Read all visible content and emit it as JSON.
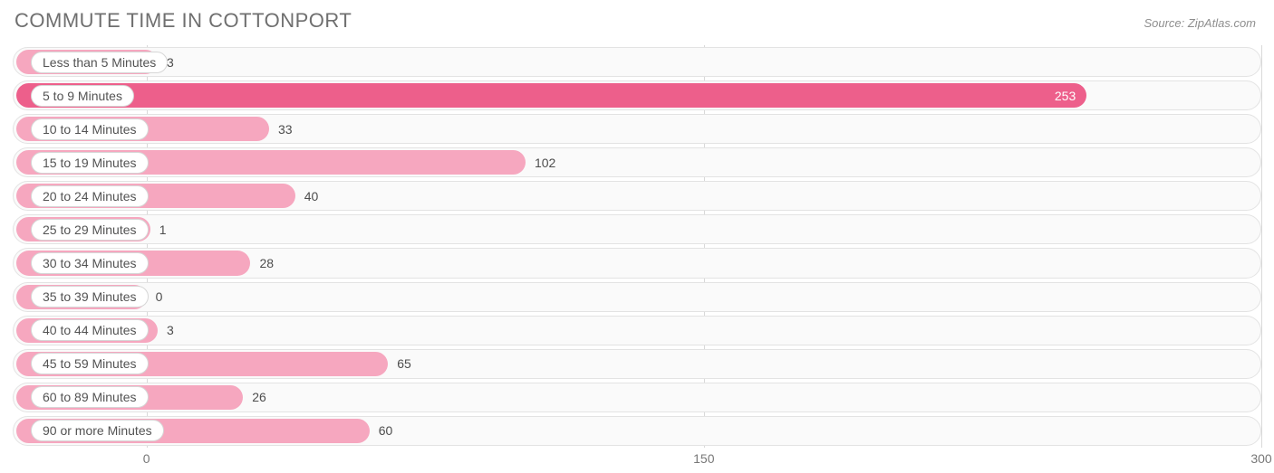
{
  "title": "COMMUTE TIME IN COTTONPORT",
  "source": "Source: ZipAtlas.com",
  "chart": {
    "type": "bar-horizontal",
    "origin_pct": 15.5,
    "scale_min": -36,
    "scale_max": 300,
    "track_border_color": "#e3e3e3",
    "track_bg": "#fafafa",
    "grid_color": "#d9d9d9",
    "background_color": "#ffffff",
    "title_color": "#6f6f6f",
    "source_color": "#8e8e8e",
    "label_color": "#535353",
    "value_color": "#4d4d4d",
    "value_color_inside": "#ffffff",
    "bar_color_full": "#ed5f8b",
    "bar_color_light": "#f6a7bf",
    "bars": [
      {
        "label": "Less than 5 Minutes",
        "value": 3,
        "color": "#f6a7bf",
        "value_inside": false
      },
      {
        "label": "5 to 9 Minutes",
        "value": 253,
        "color": "#ed5f8b",
        "value_inside": true
      },
      {
        "label": "10 to 14 Minutes",
        "value": 33,
        "color": "#f6a7bf",
        "value_inside": false
      },
      {
        "label": "15 to 19 Minutes",
        "value": 102,
        "color": "#f6a7bf",
        "value_inside": false
      },
      {
        "label": "20 to 24 Minutes",
        "value": 40,
        "color": "#f6a7bf",
        "value_inside": false
      },
      {
        "label": "25 to 29 Minutes",
        "value": 1,
        "color": "#f6a7bf",
        "value_inside": false
      },
      {
        "label": "30 to 34 Minutes",
        "value": 28,
        "color": "#f6a7bf",
        "value_inside": false
      },
      {
        "label": "35 to 39 Minutes",
        "value": 0,
        "color": "#f6a7bf",
        "value_inside": false
      },
      {
        "label": "40 to 44 Minutes",
        "value": 3,
        "color": "#f6a7bf",
        "value_inside": false
      },
      {
        "label": "45 to 59 Minutes",
        "value": 65,
        "color": "#f6a7bf",
        "value_inside": false
      },
      {
        "label": "60 to 89 Minutes",
        "value": 26,
        "color": "#f6a7bf",
        "value_inside": false
      },
      {
        "label": "90 or more Minutes",
        "value": 60,
        "color": "#f6a7bf",
        "value_inside": false
      }
    ],
    "axis_ticks": [
      {
        "value": 0,
        "label": "0"
      },
      {
        "value": 150,
        "label": "150"
      },
      {
        "value": 300,
        "label": "300"
      }
    ]
  }
}
